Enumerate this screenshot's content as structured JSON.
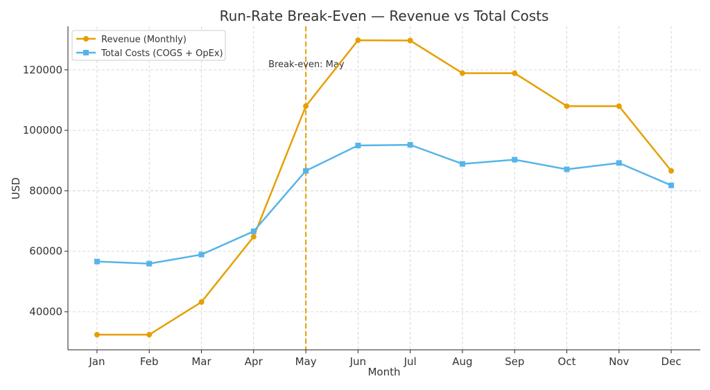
{
  "chart_data": {
    "type": "line",
    "title": "Run-Rate Break-Even — Revenue vs Total Costs",
    "xlabel": "Month",
    "ylabel": "USD",
    "categories": [
      "Jan",
      "Feb",
      "Mar",
      "Apr",
      "May",
      "Jun",
      "Jul",
      "Aug",
      "Sep",
      "Oct",
      "Nov",
      "Dec"
    ],
    "series": [
      {
        "name": "Revenue (Monthly)",
        "color": "#E69F00",
        "marker": "circle",
        "values": [
          32400,
          32400,
          43200,
          64800,
          108000,
          129800,
          129700,
          118900,
          118900,
          108000,
          108000,
          86600
        ]
      },
      {
        "name": "Total Costs (COGS + OpEx)",
        "color": "#56B4E9",
        "marker": "square",
        "values": [
          56600,
          55900,
          58900,
          66600,
          86600,
          95000,
          95200,
          88900,
          90300,
          87100,
          89200,
          81800
        ]
      }
    ],
    "yticks": [
      40000,
      60000,
      80000,
      100000,
      120000
    ],
    "ylim": [
      27400,
      134400
    ],
    "grid": true,
    "legend_placement": "top-left",
    "annotation": {
      "text": "Break-even: May",
      "x": "May",
      "line_style": "dashed",
      "color": "#E69F00"
    }
  }
}
